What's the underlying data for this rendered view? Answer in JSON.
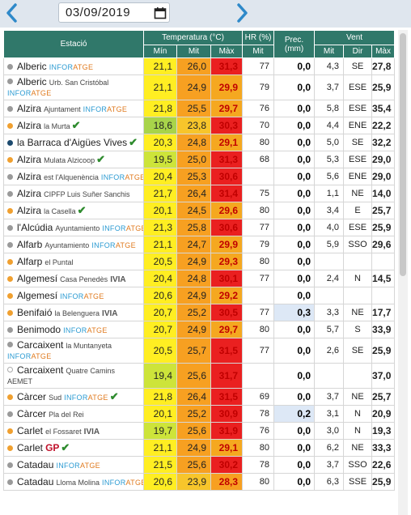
{
  "date": "03/09/2019",
  "colors": {
    "header": "#30786a",
    "tmax_text": "#c00000",
    "prec_highlight": "#dde8f6"
  },
  "headers": {
    "station": "Estació",
    "temp": "Temperatura (°C)",
    "hr": "HR (%)",
    "prec": "Prec. (mm)",
    "wind": "Vent",
    "min": "Mín",
    "mit": "Mit",
    "max": "Màx",
    "hr_mit": "Mit",
    "wind_mit": "Mit",
    "dir": "Dir",
    "wind_max": "Màx"
  },
  "rows": [
    {
      "dot": "#9a9a9a",
      "name": "Alberic",
      "sub": "",
      "logo": "INFORATGE",
      "check": false,
      "tall": false,
      "min": "21,1",
      "mit": "26,0",
      "max": "31,3",
      "hr": "77",
      "prec": "0,0",
      "wmit": "4,3",
      "dir": "SE",
      "wmax": "27,8",
      "cmin": "#ffee22",
      "cmit": "#f7a021",
      "cmax": "#ea2020"
    },
    {
      "dot": "#9a9a9a",
      "name": "Alberic",
      "sub": "Urb. San Cristóbal",
      "logo": "INFORATGE",
      "check": false,
      "tall": true,
      "min": "21,1",
      "mit": "24,9",
      "max": "29,9",
      "hr": "79",
      "prec": "0,0",
      "wmit": "3,7",
      "dir": "ESE",
      "wmax": "25,9",
      "cmin": "#ffee22",
      "cmit": "#f7a021",
      "cmax": "#f5a820"
    },
    {
      "dot": "#9a9a9a",
      "name": "Alzira",
      "sub": "Ajuntament",
      "logo": "INFORATGE",
      "check": false,
      "tall": false,
      "min": "21,8",
      "mit": "25,5",
      "max": "29,7",
      "hr": "76",
      "prec": "0,0",
      "wmit": "5,8",
      "dir": "ESE",
      "wmax": "35,4",
      "cmin": "#ffee22",
      "cmit": "#f7a021",
      "cmax": "#f5a820"
    },
    {
      "dot": "#f0a030",
      "name": "Alzira",
      "sub": "la Murta",
      "logo": "",
      "check": true,
      "tall": false,
      "min": "18,6",
      "mit": "23,8",
      "max": "30,3",
      "hr": "70",
      "prec": "0,0",
      "wmit": "4,4",
      "dir": "ENE",
      "wmax": "22,2",
      "cmin": "#a8d44a",
      "cmit": "#f7c52b",
      "cmax": "#ea2020"
    },
    {
      "dot": "#1c4a6e",
      "name": "la Barraca d'Aigües Vives",
      "sub": "",
      "logo": "",
      "check": true,
      "tall": false,
      "min": "20,3",
      "mit": "24,8",
      "max": "29,1",
      "hr": "80",
      "prec": "0,0",
      "wmit": "5,0",
      "dir": "SE",
      "wmax": "32,2",
      "cmin": "#ffee22",
      "cmit": "#f7a021",
      "cmax": "#f5a820"
    },
    {
      "dot": "#f0a030",
      "name": "Alzira",
      "sub": "Mulata Alzicoop",
      "logo": "",
      "check": true,
      "tall": false,
      "min": "19,5",
      "mit": "25,0",
      "max": "31,3",
      "hr": "68",
      "prec": "0,0",
      "wmit": "5,3",
      "dir": "ESE",
      "wmax": "29,0",
      "cmin": "#cde43a",
      "cmit": "#f7a021",
      "cmax": "#ea2020"
    },
    {
      "dot": "#9a9a9a",
      "name": "Alzira",
      "sub": "est l'Alquenència",
      "logo": "INFORATGE",
      "check": false,
      "tall": false,
      "min": "20,4",
      "mit": "25,3",
      "max": "30,6",
      "hr": "",
      "prec": "0,0",
      "wmit": "5,6",
      "dir": "ENE",
      "wmax": "29,0",
      "cmin": "#ffee22",
      "cmit": "#f7a021",
      "cmax": "#ea2020"
    },
    {
      "dot": "#9a9a9a",
      "name": "Alzira",
      "sub": "CIPFP Luis Suñer Sanchis",
      "logo": "",
      "check": false,
      "tall": false,
      "min": "21,7",
      "mit": "26,4",
      "max": "31,4",
      "hr": "75",
      "prec": "0,0",
      "wmit": "1,1",
      "dir": "NE",
      "wmax": "14,0",
      "cmin": "#ffee22",
      "cmit": "#f7a021",
      "cmax": "#ea2020"
    },
    {
      "dot": "#f0a030",
      "name": "Alzira",
      "sub": "la Casella",
      "logo": "",
      "check": true,
      "tall": false,
      "min": "20,1",
      "mit": "24,5",
      "max": "29,6",
      "hr": "80",
      "prec": "0,0",
      "wmit": "3,4",
      "dir": "E",
      "wmax": "25,7",
      "cmin": "#ffee22",
      "cmit": "#f7a021",
      "cmax": "#f5a820"
    },
    {
      "dot": "#9a9a9a",
      "name": "l'Alcúdia",
      "sub": "Ayuntamiento",
      "logo": "INFORATGE",
      "check": false,
      "tall": false,
      "min": "21,3",
      "mit": "25,8",
      "max": "30,6",
      "hr": "77",
      "prec": "0,0",
      "wmit": "4,0",
      "dir": "ESE",
      "wmax": "25,9",
      "cmin": "#ffee22",
      "cmit": "#f7a021",
      "cmax": "#ea2020"
    },
    {
      "dot": "#9a9a9a",
      "name": "Alfarb",
      "sub": "Ayuntamiento",
      "logo": "INFORATGE",
      "check": false,
      "tall": false,
      "min": "21,1",
      "mit": "24,7",
      "max": "29,9",
      "hr": "79",
      "prec": "0,0",
      "wmit": "5,9",
      "dir": "SSO",
      "wmax": "29,6",
      "cmin": "#ffee22",
      "cmit": "#f7a021",
      "cmax": "#f5a820"
    },
    {
      "dot": "#f0a030",
      "name": "Alfarp",
      "sub": "el Puntal",
      "logo": "",
      "check": false,
      "tall": false,
      "min": "20,5",
      "mit": "24,9",
      "max": "29,3",
      "hr": "80",
      "prec": "0,0",
      "wmit": "",
      "dir": "",
      "wmax": "",
      "cmin": "#ffee22",
      "cmit": "#f7a021",
      "cmax": "#f5a820"
    },
    {
      "dot": "#f0a030",
      "name": "Algemesí",
      "sub": "Casa Penedès",
      "logo": "IVIA",
      "check": false,
      "tall": false,
      "min": "20,4",
      "mit": "24,8",
      "max": "30,1",
      "hr": "77",
      "prec": "0,0",
      "wmit": "2,4",
      "dir": "N",
      "wmax": "14,5",
      "cmin": "#ffee22",
      "cmit": "#f7a021",
      "cmax": "#ea2020"
    },
    {
      "dot": "#f0a030",
      "name": "Algemesí",
      "sub": "",
      "logo": "INFORATGE",
      "check": false,
      "tall": false,
      "min": "20,6",
      "mit": "24,9",
      "max": "29,2",
      "hr": "",
      "prec": "0,0",
      "wmit": "",
      "dir": "",
      "wmax": "",
      "cmin": "#ffee22",
      "cmit": "#f7a021",
      "cmax": "#f5a820"
    },
    {
      "dot": "#f0a030",
      "name": "Benifaió",
      "sub": "la Belenguera",
      "logo": "IVIA",
      "check": false,
      "tall": false,
      "min": "20,7",
      "mit": "25,2",
      "max": "30,5",
      "hr": "77",
      "prec": "0,3",
      "wmit": "3,3",
      "dir": "NE",
      "wmax": "17,7",
      "cmin": "#ffee22",
      "cmit": "#f7a021",
      "cmax": "#ea2020",
      "phl": true
    },
    {
      "dot": "#9a9a9a",
      "name": "Benimodo",
      "sub": "",
      "logo": "INFORATGE",
      "check": false,
      "tall": false,
      "min": "20,7",
      "mit": "24,9",
      "max": "29,7",
      "hr": "80",
      "prec": "0,0",
      "wmit": "5,7",
      "dir": "S",
      "wmax": "33,9",
      "cmin": "#ffee22",
      "cmit": "#f7a021",
      "cmax": "#f5a820"
    },
    {
      "dot": "#9a9a9a",
      "name": "Carcaixent",
      "sub": "la Muntanyeta",
      "logo": "INFORATGE",
      "check": false,
      "tall": true,
      "min": "20,5",
      "mit": "25,7",
      "max": "31,5",
      "hr": "77",
      "prec": "0,0",
      "wmit": "2,6",
      "dir": "SE",
      "wmax": "25,9",
      "cmin": "#ffee22",
      "cmit": "#f7a021",
      "cmax": "#ea2020"
    },
    {
      "dot": "#ffffff",
      "name": "Carcaixent",
      "sub": "Quatre Camins",
      "logo": "",
      "sub2": "AEMET",
      "check": false,
      "tall": true,
      "min": "19,4",
      "mit": "25,6",
      "max": "31,7",
      "hr": "",
      "prec": "0,0",
      "wmit": "",
      "dir": "",
      "wmax": "37,0",
      "cmin": "#cde43a",
      "cmit": "#f7a021",
      "cmax": "#ea2020"
    },
    {
      "dot": "#f0a030",
      "name": "Càrcer",
      "sub": "Sud",
      "logo": "INFORATGE",
      "check": true,
      "tall": false,
      "min": "21,8",
      "mit": "26,4",
      "max": "31,5",
      "hr": "69",
      "prec": "0,0",
      "wmit": "3,7",
      "dir": "NE",
      "wmax": "25,7",
      "cmin": "#ffee22",
      "cmit": "#f7a021",
      "cmax": "#ea2020"
    },
    {
      "dot": "#9a9a9a",
      "name": "Càrcer",
      "sub": "Pla del Rei",
      "logo": "",
      "check": false,
      "tall": false,
      "min": "20,1",
      "mit": "25,2",
      "max": "30,9",
      "hr": "78",
      "prec": "0,2",
      "wmit": "3,1",
      "dir": "N",
      "wmax": "20,9",
      "cmin": "#ffee22",
      "cmit": "#f7a021",
      "cmax": "#ea2020",
      "phl": true
    },
    {
      "dot": "#f0a030",
      "name": "Carlet",
      "sub": "el Fossaret",
      "logo": "IVIA",
      "check": false,
      "tall": false,
      "min": "19,7",
      "mit": "25,6",
      "max": "31,9",
      "hr": "76",
      "prec": "0,0",
      "wmit": "3,0",
      "dir": "N",
      "wmax": "19,3",
      "cmin": "#cde43a",
      "cmit": "#f7a021",
      "cmax": "#ea2020"
    },
    {
      "dot": "#f0a030",
      "name": "Carlet",
      "sub": "",
      "logo": "GP",
      "check": true,
      "tall": false,
      "min": "21,1",
      "mit": "24,9",
      "max": "29,1",
      "hr": "80",
      "prec": "0,0",
      "wmit": "6,2",
      "dir": "NE",
      "wmax": "33,3",
      "cmin": "#ffee22",
      "cmit": "#f7a021",
      "cmax": "#f5a820"
    },
    {
      "dot": "#9a9a9a",
      "name": "Catadau",
      "sub": "",
      "logo": "INFORATGE",
      "check": false,
      "tall": false,
      "min": "21,5",
      "mit": "25,6",
      "max": "30,2",
      "hr": "78",
      "prec": "0,0",
      "wmit": "3,7",
      "dir": "SSO",
      "wmax": "22,6",
      "cmin": "#ffee22",
      "cmit": "#f7a021",
      "cmax": "#ea2020"
    },
    {
      "dot": "#9a9a9a",
      "name": "Catadau",
      "sub": "Lloma Molina",
      "logo": "INFORATGE",
      "check": false,
      "tall": false,
      "min": "20,6",
      "mit": "23,9",
      "max": "28,3",
      "hr": "80",
      "prec": "0,0",
      "wmit": "6,3",
      "dir": "SSE",
      "wmax": "25,9",
      "cmin": "#ffee22",
      "cmit": "#f7c52b",
      "cmax": "#f7a021"
    }
  ]
}
